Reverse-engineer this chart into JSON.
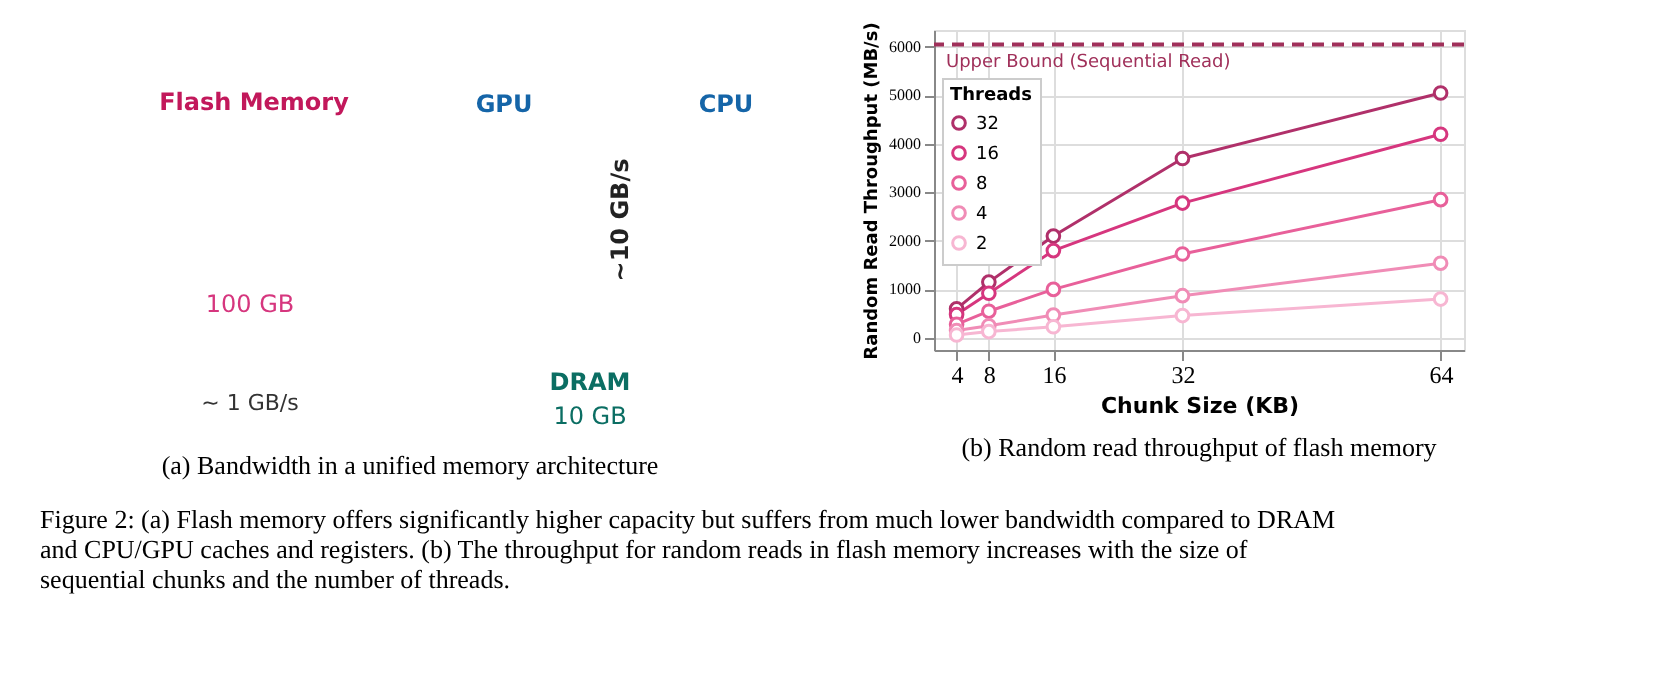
{
  "chart_data": [
    {
      "type": "other",
      "title": "(a) Bandwidth in a unified memory architecture",
      "annotations": [
        "Flash Memory",
        "100 GB",
        "~ 1 GB/s",
        "GPU",
        "~10 GB/s",
        "CPU",
        "DRAM",
        "10 GB"
      ]
    },
    {
      "type": "line",
      "title": "(b) Random read throughput of flash memory",
      "xlabel": "Chunk Size (KB)",
      "ylabel": "Random Read Throughput (MB/s)",
      "legend_title": "Threads",
      "x": [
        4,
        8,
        16,
        32,
        64
      ],
      "series": [
        {
          "name": "32",
          "color": "#b0306a",
          "values": [
            600,
            1150,
            2100,
            3700,
            5050
          ]
        },
        {
          "name": "16",
          "color": "#d6367e",
          "values": [
            480,
            920,
            1800,
            2780,
            4200
          ]
        },
        {
          "name": "8",
          "color": "#e8609a",
          "values": [
            280,
            550,
            1000,
            1730,
            2850
          ]
        },
        {
          "name": "4",
          "color": "#f08cb6",
          "values": [
            150,
            250,
            470,
            870,
            1540
          ]
        },
        {
          "name": "2",
          "color": "#f7b6d2",
          "values": [
            60,
            130,
            230,
            460,
            800
          ]
        }
      ],
      "xlim": [
        1.2,
        66.9
      ],
      "ylim": [
        -250,
        6350
      ],
      "xticks": [
        4,
        8,
        16,
        32,
        64
      ],
      "yticks": [
        0,
        1000,
        2000,
        3000,
        4000,
        5000,
        6000
      ],
      "ref_lines": [
        {
          "axis": "y",
          "value": 6050,
          "label": "Upper Bound (Sequential Read)",
          "color": "#a0305a",
          "line_style": "dashed"
        }
      ],
      "grid": true,
      "legend": "top left",
      "marker": "circle",
      "line_style": "solid",
      "annotations": [
        "Figure 2: (a) Flash memory offers significantly higher capacity but suffers from much lower bandwidth compared to DRAM and CPU/GPU caches and registers. (b) The throughput for random reads in flash memory increases with the size of sequential chunks and the number of threads."
      ]
    }
  ]
}
